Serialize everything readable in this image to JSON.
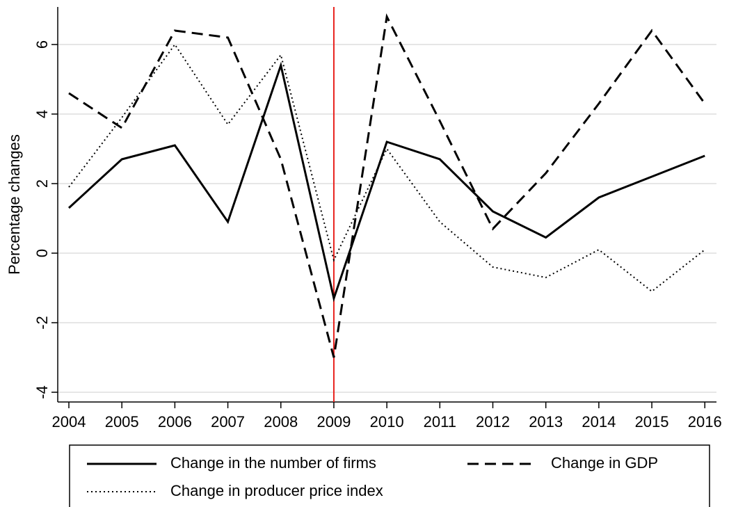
{
  "chart_data": {
    "type": "line",
    "y_label": "Percentage changes",
    "x": [
      2004,
      2005,
      2006,
      2007,
      2008,
      2009,
      2010,
      2011,
      2012,
      2013,
      2014,
      2015,
      2016
    ],
    "xlim": [
      2003.79,
      2016.22
    ],
    "xticks": [
      2004,
      2005,
      2006,
      2007,
      2008,
      2009,
      2010,
      2011,
      2012,
      2013,
      2014,
      2015,
      2016
    ],
    "ylim": [
      -4.28,
      7.08
    ],
    "yticks": [
      -4,
      -2,
      0,
      2,
      4,
      6
    ],
    "grid": true,
    "reference_line": {
      "x": 2009,
      "color": "#e8201c"
    },
    "series": [
      {
        "name": "Change in the number of firms",
        "color": "#000000",
        "style": "solid",
        "values": [
          1.3,
          2.7,
          3.1,
          0.9,
          5.4,
          -1.3,
          3.2,
          2.7,
          1.2,
          0.45,
          1.6,
          2.2,
          2.8
        ]
      },
      {
        "name": "Change in GDP",
        "color": "#000000",
        "style": "dashed",
        "values": [
          4.6,
          3.6,
          6.4,
          6.2,
          2.7,
          -3.0,
          6.8,
          3.8,
          0.7,
          2.3,
          4.3,
          6.4,
          4.3
        ]
      },
      {
        "name": "Change in producer price index",
        "color": "#000000",
        "style": "dotted",
        "values": [
          1.9,
          3.9,
          6.0,
          3.7,
          5.7,
          -0.2,
          3.0,
          0.9,
          -0.4,
          -0.7,
          0.1,
          -1.1,
          0.1
        ]
      }
    ]
  }
}
